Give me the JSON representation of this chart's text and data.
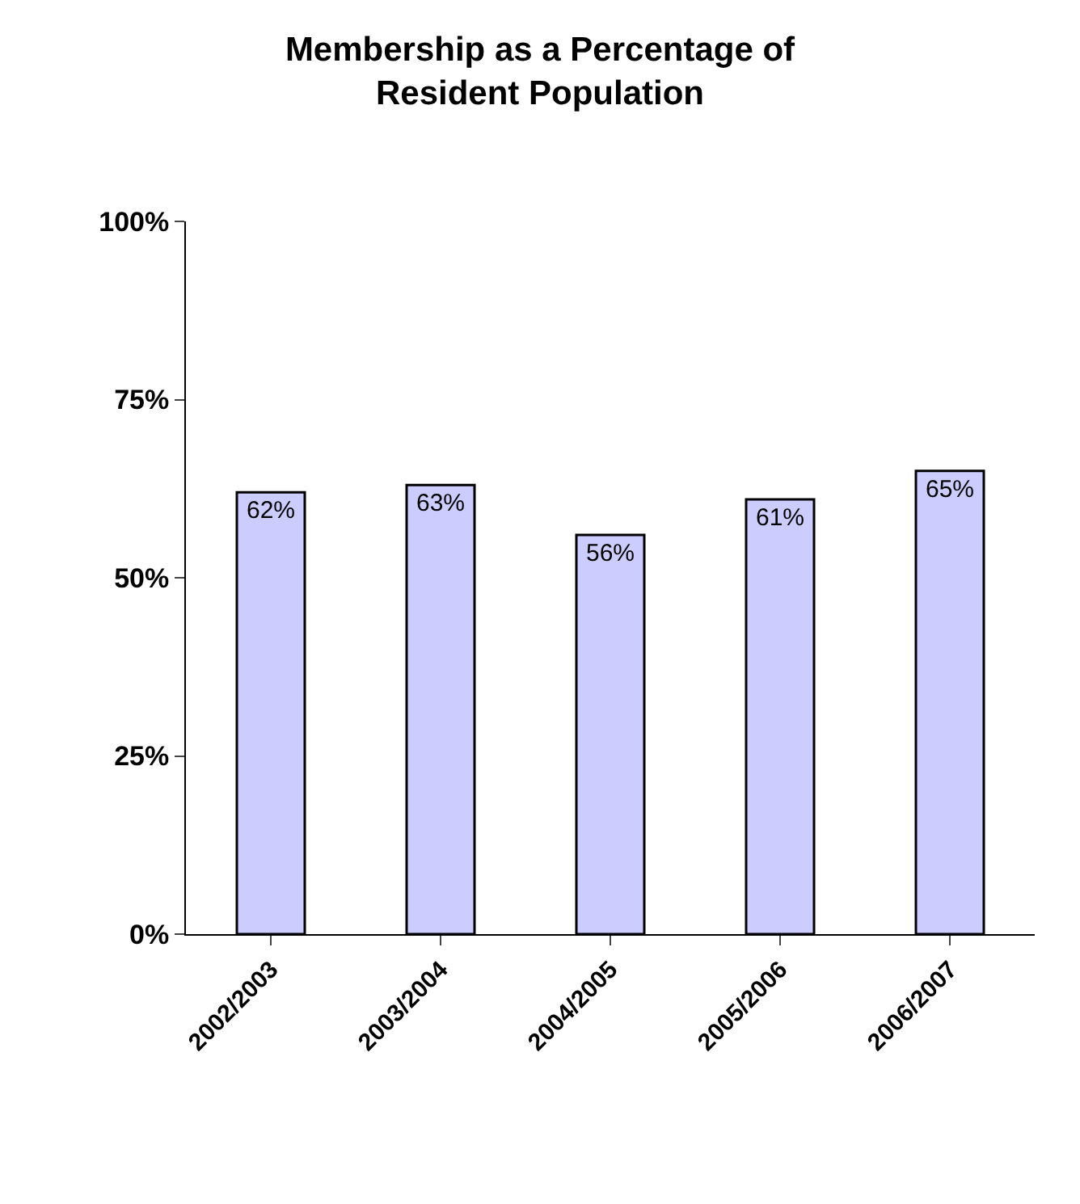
{
  "chart_data": {
    "type": "bar",
    "title": "Membership as a Percentage of\nResident Population",
    "categories": [
      "2002/2003",
      "2003/2004",
      "2004/2005",
      "2005/2006",
      "2006/2007"
    ],
    "values": [
      62,
      63,
      56,
      61,
      65
    ],
    "value_labels": [
      "62%",
      "63%",
      "56%",
      "61%",
      "65%"
    ],
    "color": "#ccccff",
    "ylim": [
      0,
      100
    ],
    "yticks": [
      {
        "value": 0,
        "label": "0%"
      },
      {
        "value": 25,
        "label": "25%"
      },
      {
        "value": 50,
        "label": "50%"
      },
      {
        "value": 75,
        "label": "75%"
      },
      {
        "value": 100,
        "label": "100%"
      }
    ],
    "legend": false
  }
}
